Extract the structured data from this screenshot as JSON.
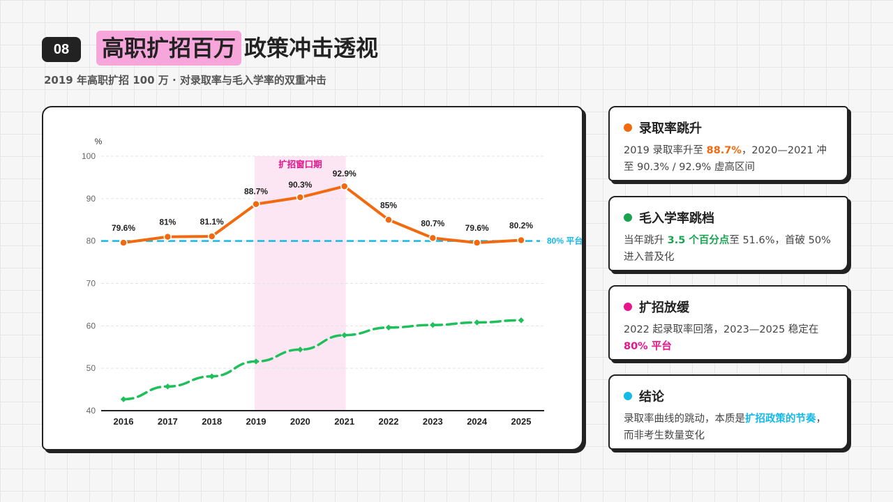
{
  "header": {
    "badge": "08",
    "title_highlight": "高职扩招百万",
    "title_rest": "政策冲击透视",
    "subtitle": "2019 年高职扩招 100 万 · 对录取率与毛入学率的双重冲击"
  },
  "colors": {
    "orange": "#f26a0f",
    "green": "#1fbf5b",
    "pink": "#e8148c",
    "cyan": "#13b9e8",
    "band": "#fde6f3"
  },
  "chart_data": {
    "type": "line",
    "x": [
      "2016",
      "2017",
      "2018",
      "2019",
      "2020",
      "2021",
      "2022",
      "2023",
      "2024",
      "2025"
    ],
    "ylabel": "%",
    "ylim": [
      40,
      100
    ],
    "yticks": [
      "40",
      "50",
      "60",
      "70",
      "80",
      "90",
      "100"
    ],
    "grid": true,
    "series": [
      {
        "name": "录取率",
        "values": [
          79.6,
          81,
          81.1,
          88.7,
          90.3,
          92.9,
          85,
          80.7,
          79.6,
          80.2
        ],
        "labels": [
          "79.6%",
          "81%",
          "81.1%",
          "88.7%",
          "90.3%",
          "92.9%",
          "85%",
          "80.7%",
          "79.6%",
          "80.2%"
        ],
        "style": "solid"
      },
      {
        "name": "毛入学率",
        "values": [
          42.7,
          45.7,
          48.1,
          51.6,
          54.4,
          57.8,
          59.6,
          60.2,
          60.8,
          61.3
        ],
        "style": "dashed"
      }
    ],
    "band": {
      "from": "2019",
      "to": "2021",
      "label": "扩招窗口期"
    },
    "reference": {
      "y": 80,
      "label": "80% 平台"
    }
  },
  "cards": [
    {
      "title": "录取率跳升",
      "color": "#f26a0f",
      "parts": [
        {
          "text": "2019 录取率升至 "
        },
        {
          "text": "88.7%",
          "bold": true,
          "color": "#f26a0f"
        },
        {
          "text": "，2020—2021 冲至 90.3% / 92.9% 虚高区间"
        }
      ]
    },
    {
      "title": "毛入学率跳档",
      "color": "#1aa34f",
      "parts": [
        {
          "text": "当年跳升 "
        },
        {
          "text": "3.5 个百分点",
          "bold": true,
          "color": "#1aa34f"
        },
        {
          "text": "至 51.6%，首破 50% 进入普及化"
        }
      ]
    },
    {
      "title": "扩招放缓",
      "color": "#e8148c",
      "parts": [
        {
          "text": "2022 起录取率回落，2023—2025 稳定在 "
        },
        {
          "text": "80% 平台",
          "bold": true,
          "color": "#e8148c"
        }
      ]
    },
    {
      "title": "结论",
      "color": "#13b9e8",
      "parts": [
        {
          "text": "录取率曲线的跳动，本质是"
        },
        {
          "text": "扩招政策的节奏",
          "bold": true,
          "color": "#13b9e8"
        },
        {
          "text": "，而非考生数量变化"
        }
      ]
    }
  ]
}
